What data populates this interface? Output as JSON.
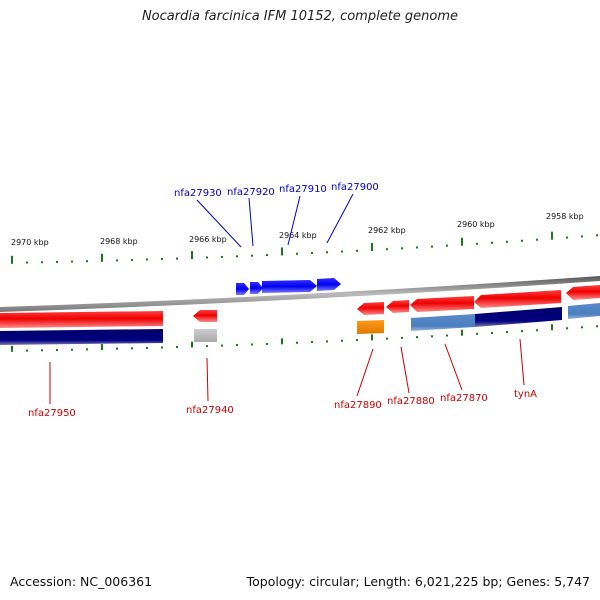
{
  "title": "Nocardia farcinica IFM 10152, complete genome",
  "footer": {
    "accession": "Accession: NC_006361",
    "summary": "Topology: circular; Length: 6,021,225 bp; Genes: 5,747"
  },
  "scale": {
    "labels": [
      "2970 kbp",
      "2968 kbp",
      "2966 kbp",
      "2964 kbp",
      "2962 kbp",
      "2960 kbp",
      "2958 kbp"
    ]
  },
  "genes_top": [
    {
      "label": "nfa27930",
      "color": "#0000cc"
    },
    {
      "label": "nfa27920",
      "color": "#0000cc"
    },
    {
      "label": "nfa27910",
      "color": "#0000cc"
    },
    {
      "label": "nfa27900",
      "color": "#0000cc"
    }
  ],
  "genes_bottom": [
    {
      "label": "nfa27950",
      "color": "#cc0000"
    },
    {
      "label": "nfa27940",
      "color": "#cc0000"
    },
    {
      "label": "nfa27890",
      "color": "#cc0000"
    },
    {
      "label": "nfa27880",
      "color": "#cc0000"
    },
    {
      "label": "nfa27870",
      "color": "#cc0000"
    },
    {
      "label": "tynA",
      "color": "#cc0000"
    }
  ],
  "colors": {
    "forward_gene": "#1a1aff",
    "reverse_gene": "#ee1111",
    "cds_dark": "#000080",
    "cds_light": "#4a7fbf",
    "cds_grey": "#bbbbbb",
    "cds_orange": "#ff8c00",
    "backbone": "#888888",
    "tick": "#1a7a1a"
  }
}
